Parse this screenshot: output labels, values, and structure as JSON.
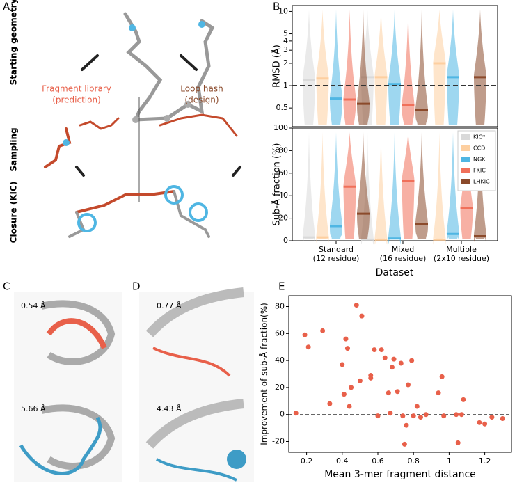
{
  "panels": {
    "labels": [
      "A",
      "B",
      "C",
      "D",
      "E"
    ],
    "a": {
      "row_labels": [
        "Starting geometry",
        "Sampling",
        "Closure (KIC)"
      ],
      "left_title": [
        "Fragment library",
        "(prediction)"
      ],
      "right_title": [
        "Loop hash",
        "(design)"
      ]
    },
    "c": {
      "rmsd": [
        "0.54 Å",
        "5.66 Å"
      ]
    },
    "d": {
      "rmsd": [
        "0.77 Å",
        "4.43 Å"
      ]
    }
  },
  "chart_data": [
    {
      "type": "violin",
      "ylabel": "RMSD (Å)",
      "log_scale": true,
      "ylim": [
        0.28,
        12
      ],
      "yticks": [
        0.5,
        1,
        2,
        3,
        4,
        5,
        10
      ],
      "hline": 1,
      "series": [
        {
          "values": [
            1.2,
            1.3,
            null
          ]
        },
        {
          "values": [
            1.25,
            1.3,
            2.0
          ]
        },
        {
          "values": [
            0.67,
            1.05,
            1.3
          ]
        },
        {
          "values": [
            0.65,
            0.55,
            null
          ]
        },
        {
          "values": [
            0.57,
            0.47,
            1.3
          ]
        }
      ]
    },
    {
      "type": "violin",
      "ylabel": "Sub-Å fraction (%)",
      "xlabel": "Dataset",
      "ylim": [
        0,
        100
      ],
      "yticks": [
        0,
        20,
        40,
        60,
        80,
        100
      ],
      "categories": [
        "Standard",
        "Mixed",
        "Multiple"
      ],
      "category_sublabels": [
        "(12 residue)",
        "(16 residue)",
        "(2x10 residue)"
      ],
      "legend": "upper right",
      "series": [
        {
          "name": "KIC*",
          "color": "#d9d9d9",
          "values": [
            3,
            1,
            null
          ]
        },
        {
          "name": "CCD",
          "color": "#fdcfa0",
          "values": [
            3,
            1,
            1
          ]
        },
        {
          "name": "NGK",
          "color": "#4fb6e3",
          "values": [
            13,
            2,
            6
          ]
        },
        {
          "name": "FKIC",
          "color": "#f0705a",
          "values": [
            48,
            53,
            29
          ]
        },
        {
          "name": "LHKIC",
          "color": "#8b4a2b",
          "values": [
            24,
            15,
            4
          ]
        }
      ]
    },
    {
      "type": "scatter",
      "xlabel": "Mean 3-mer fragment distance",
      "ylabel": "Improvement of sub-Å fraction(%)",
      "color": "#e8604a",
      "xlim": [
        0.1,
        1.35
      ],
      "ylim": [
        -28,
        88
      ],
      "xticks": [
        0.2,
        0.4,
        0.6,
        0.8,
        1.0,
        1.2
      ],
      "yticks": [
        -20,
        0,
        20,
        40,
        60,
        80
      ],
      "hline": 0,
      "x": [
        0.14,
        0.19,
        0.21,
        0.29,
        0.33,
        0.4,
        0.41,
        0.42,
        0.43,
        0.44,
        0.45,
        0.48,
        0.5,
        0.51,
        0.56,
        0.56,
        0.58,
        0.6,
        0.62,
        0.64,
        0.66,
        0.67,
        0.68,
        0.69,
        0.71,
        0.73,
        0.74,
        0.75,
        0.76,
        0.77,
        0.79,
        0.8,
        0.82,
        0.84,
        0.87,
        0.94,
        0.96,
        0.97,
        1.04,
        1.05,
        1.07,
        1.08,
        1.17,
        1.2,
        1.24,
        1.3
      ],
      "values": [
        1,
        59,
        50,
        62,
        8,
        37,
        15,
        56,
        49,
        6,
        20,
        81,
        25,
        73,
        27,
        29,
        48,
        -1,
        48,
        42,
        16,
        1,
        35,
        41,
        17,
        38,
        -1,
        -22,
        -8,
        22,
        40,
        -1,
        6,
        -2,
        0,
        16,
        28,
        -1,
        0,
        -21,
        0,
        11,
        -6,
        -7,
        -2,
        -3
      ]
    }
  ]
}
